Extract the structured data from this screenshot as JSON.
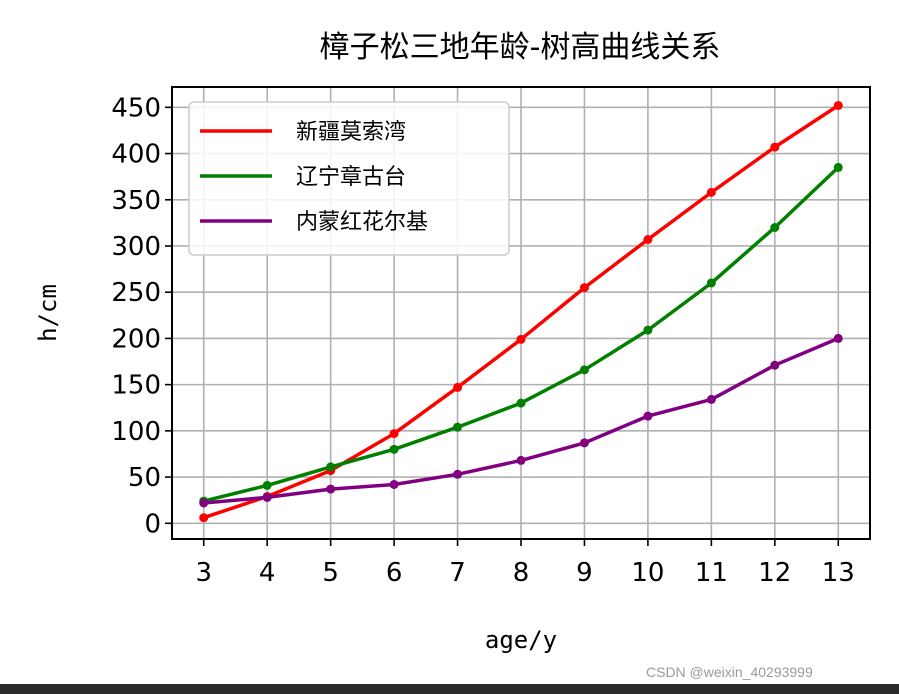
{
  "chart_data": {
    "type": "line",
    "title": "樟子松三地年龄-树高曲线关系",
    "xlabel": "age/y",
    "ylabel": "h/cm",
    "x": [
      3,
      4,
      5,
      6,
      7,
      8,
      9,
      10,
      11,
      12,
      13
    ],
    "xticks": [
      "3",
      "4",
      "5",
      "6",
      "7",
      "8",
      "9",
      "10",
      "11",
      "12",
      "13"
    ],
    "yticks": [
      "0",
      "50",
      "100",
      "150",
      "200",
      "250",
      "300",
      "350",
      "400",
      "450"
    ],
    "ytick_values": [
      0,
      50,
      100,
      150,
      200,
      250,
      300,
      350,
      400,
      450
    ],
    "xlim": [
      2.5,
      13.5
    ],
    "ylim": [
      -17,
      472
    ],
    "grid": true,
    "legend_position": "top-left",
    "series": [
      {
        "name": "新疆莫索湾",
        "color": "#ff0000",
        "values": [
          6,
          29,
          57,
          97,
          147,
          199,
          255,
          307,
          358,
          407,
          452
        ]
      },
      {
        "name": "辽宁章古台",
        "color": "#008000",
        "values": [
          24,
          41,
          61,
          80,
          104,
          130,
          166,
          209,
          260,
          320,
          385
        ]
      },
      {
        "name": "内蒙红花尔基",
        "color": "#800080",
        "values": [
          22,
          28,
          37,
          42,
          53,
          68,
          87,
          116,
          134,
          171,
          200
        ]
      }
    ]
  },
  "watermark": "CSDN @weixin_40293999"
}
